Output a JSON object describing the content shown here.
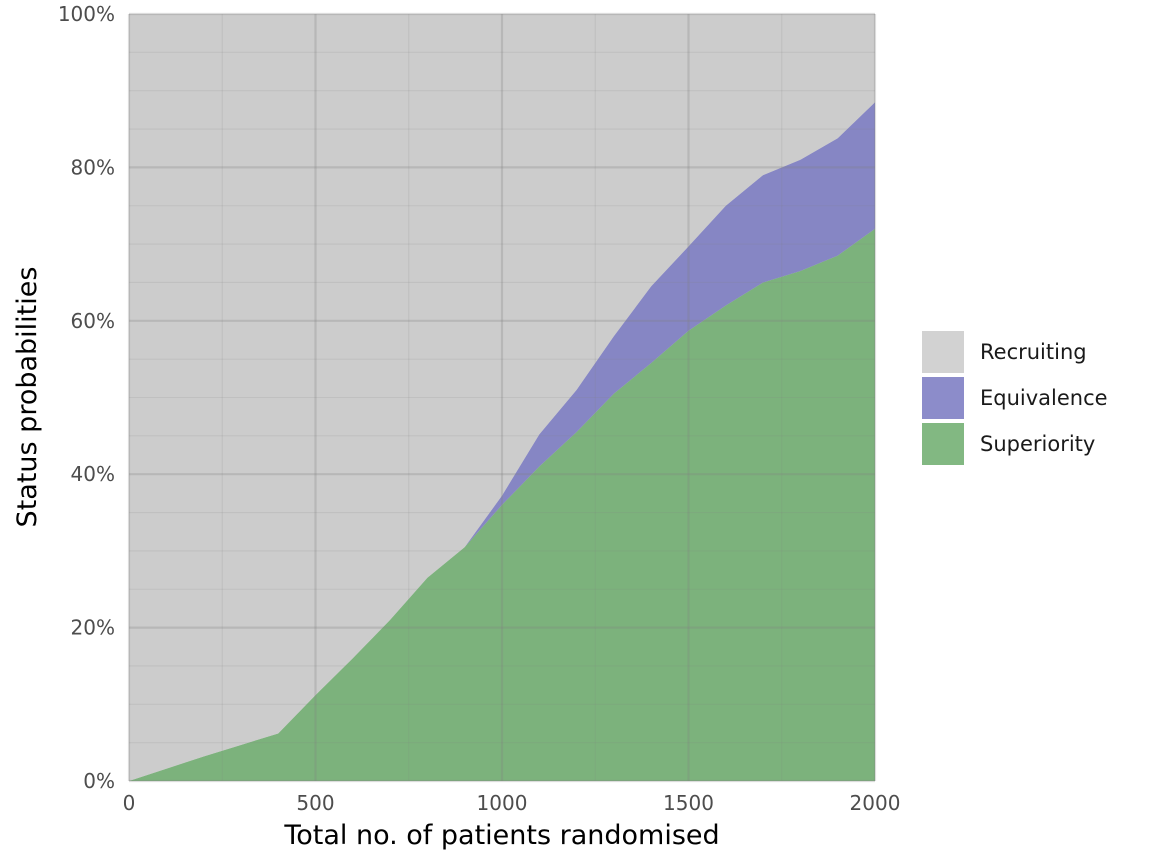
{
  "chart_data": {
    "type": "area",
    "stacked": true,
    "xlabel": "Total no. of patients randomised",
    "ylabel": "Status probabilities",
    "xlim": [
      0,
      2000
    ],
    "ylim": [
      0,
      1
    ],
    "x_ticks": [
      0,
      500,
      1000,
      1500,
      2000
    ],
    "x_tick_labels": [
      "0",
      "500",
      "1000",
      "1500",
      "2000"
    ],
    "y_ticks": [
      0,
      0.2,
      0.4,
      0.6,
      0.8,
      1.0
    ],
    "y_tick_labels": [
      "0%",
      "20%",
      "40%",
      "60%",
      "80%",
      "100%"
    ],
    "grid": true,
    "legend_position": "right",
    "x": [
      0,
      100,
      200,
      300,
      400,
      500,
      600,
      700,
      800,
      900,
      1000,
      1100,
      1200,
      1300,
      1400,
      1500,
      1600,
      1700,
      1800,
      1900,
      2000
    ],
    "series": [
      {
        "name": "Superiority",
        "color": "#4d9a4d",
        "values": [
          0.0,
          0.016,
          0.032,
          0.047,
          0.062,
          0.112,
          0.16,
          0.21,
          0.265,
          0.305,
          0.36,
          0.41,
          0.455,
          0.505,
          0.545,
          0.587,
          0.62,
          0.65,
          0.665,
          0.685,
          0.72
        ]
      },
      {
        "name": "Equivalence",
        "color": "#5b5bb4",
        "values": [
          0.0,
          0.0,
          0.0,
          0.0,
          0.0,
          0.0,
          0.0,
          0.0,
          0.0,
          0.0,
          0.012,
          0.042,
          0.055,
          0.075,
          0.1,
          0.11,
          0.13,
          0.14,
          0.145,
          0.153,
          0.165
        ]
      },
      {
        "name": "Recruiting",
        "color": "#bfbfbf",
        "values": [
          1.0,
          0.984,
          0.968,
          0.953,
          0.938,
          0.888,
          0.84,
          0.79,
          0.735,
          0.695,
          0.628,
          0.548,
          0.49,
          0.42,
          0.355,
          0.303,
          0.25,
          0.21,
          0.19,
          0.162,
          0.115
        ]
      }
    ],
    "legend_order": [
      "Recruiting",
      "Equivalence",
      "Superiority"
    ]
  }
}
